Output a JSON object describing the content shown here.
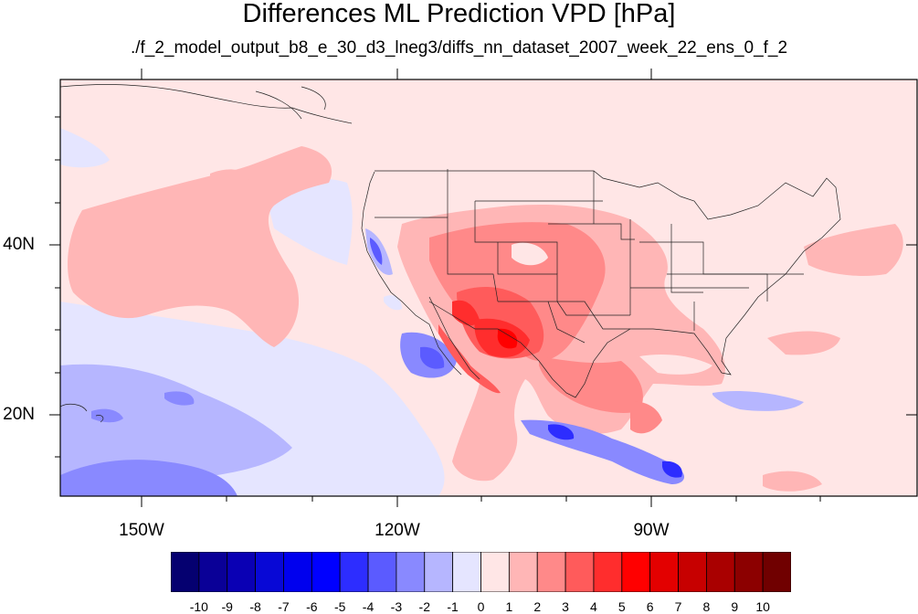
{
  "title": "Differences ML Prediction VPD [hPa]",
  "subtitle": "./f_2_model_output_b8_e_30_d3_lneg3/diffs_nn_dataset_2007_week_22_ens_0_f_2",
  "lat_labels": [
    "40N",
    "20N"
  ],
  "lon_labels": [
    "150W",
    "120W",
    "90W"
  ],
  "colorbar": {
    "labels": [
      "-10",
      "-9",
      "-8",
      "-7",
      "-6",
      "-5",
      "-4",
      "-3",
      "-2",
      "-1",
      "0",
      "1",
      "2",
      "3",
      "4",
      "5",
      "6",
      "7",
      "8",
      "9",
      "10"
    ],
    "colors": [
      "#050070",
      "#0a0097",
      "#0a00b4",
      "#0808d6",
      "#0000ee",
      "#0000ff",
      "#2d2dff",
      "#5b5bff",
      "#8989ff",
      "#b6b6ff",
      "#e5e5ff",
      "#ffe6e6",
      "#ffb6b6",
      "#ff8989",
      "#ff5b5b",
      "#ff2d2d",
      "#ff0000",
      "#e30000",
      "#c70000",
      "#a90000",
      "#8c0000",
      "#700000"
    ]
  }
}
